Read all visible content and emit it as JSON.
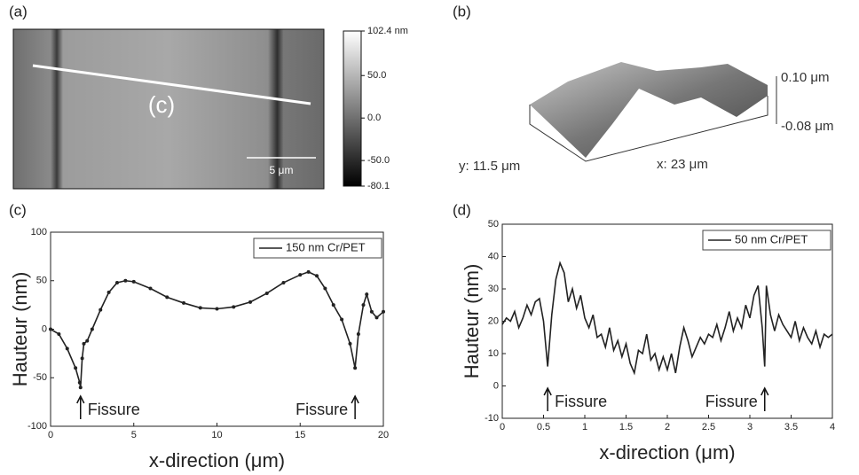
{
  "panel_labels": [
    "(a)",
    "(b)"
  ],
  "afm_image": {
    "line_label": "(c)",
    "scale_bar": "5 μm",
    "colorbar": {
      "lim": [
        -80.1,
        102.4
      ],
      "ticks": [
        {
          "value": 102.4,
          "label": "102.4 nm"
        },
        {
          "value": 50,
          "label": "50.0"
        },
        {
          "value": 0,
          "label": "0.0"
        },
        {
          "value": -50,
          "label": "-50.0"
        },
        -80.1
      ]
    }
  },
  "surface_3d": {
    "z_top": "0.10 μm",
    "z_bottom": "-0.08 μm",
    "y_label": "y: 11.5 μm",
    "x_label": "x: 23 μm"
  },
  "chart_data": [
    {
      "type": "line",
      "panel": "(c)",
      "xlabel": "x-direction (μm)",
      "ylabel": "Hauteur (nm)",
      "xlim": [
        0,
        20
      ],
      "ylim": [
        -100,
        100
      ],
      "xticks": [
        0,
        5,
        10,
        15,
        20
      ],
      "yticks": [
        -100,
        -50,
        0,
        50,
        100
      ],
      "marker": "dot",
      "x": [
        0,
        0.5,
        1,
        1.5,
        1.75,
        1.8,
        1.9,
        2.0,
        2.2,
        2.5,
        3,
        3.5,
        4,
        4.5,
        5,
        6,
        7,
        8,
        9,
        10,
        11,
        12,
        13,
        14,
        15,
        15.5,
        16,
        16.5,
        17,
        17.5,
        18,
        18.3,
        18.5,
        18.8,
        19,
        19.3,
        19.6,
        20
      ],
      "series": [
        {
          "name": "150 nm Cr/PET",
          "color": "#222222",
          "values": [
            0,
            -5,
            -20,
            -40,
            -55,
            -60,
            -30,
            -15,
            -12,
            0,
            20,
            38,
            48,
            50,
            49,
            42,
            33,
            27,
            22,
            21,
            23,
            28,
            37,
            48,
            56,
            59,
            55,
            42,
            25,
            10,
            -15,
            -40,
            -5,
            25,
            36,
            18,
            12,
            18
          ]
        }
      ],
      "annotations": [
        {
          "text": "Fissure",
          "x": 1.8
        },
        {
          "text": "Fissure",
          "x": 18.3
        }
      ]
    },
    {
      "type": "line",
      "panel": "(d)",
      "xlabel": "x-direction (μm)",
      "ylabel": "Hauteur (nm)",
      "xlim": [
        0,
        4
      ],
      "ylim": [
        -10,
        50
      ],
      "xticks": [
        0,
        0.5,
        1,
        1.5,
        2,
        2.5,
        3,
        3.5,
        4
      ],
      "yticks": [
        -10,
        0,
        10,
        20,
        30,
        40,
        50
      ],
      "x": [
        0,
        0.05,
        0.1,
        0.15,
        0.2,
        0.25,
        0.3,
        0.35,
        0.4,
        0.45,
        0.5,
        0.55,
        0.6,
        0.65,
        0.7,
        0.75,
        0.8,
        0.85,
        0.9,
        0.95,
        1.0,
        1.05,
        1.1,
        1.15,
        1.2,
        1.25,
        1.3,
        1.35,
        1.4,
        1.45,
        1.5,
        1.55,
        1.6,
        1.65,
        1.7,
        1.75,
        1.8,
        1.85,
        1.9,
        1.95,
        2.0,
        2.05,
        2.1,
        2.15,
        2.2,
        2.25,
        2.3,
        2.35,
        2.4,
        2.45,
        2.5,
        2.55,
        2.6,
        2.65,
        2.7,
        2.75,
        2.8,
        2.85,
        2.9,
        2.95,
        3.0,
        3.05,
        3.1,
        3.15,
        3.18,
        3.2,
        3.25,
        3.3,
        3.35,
        3.4,
        3.45,
        3.5,
        3.55,
        3.6,
        3.65,
        3.7,
        3.75,
        3.8,
        3.85,
        3.9,
        3.95,
        4.0
      ],
      "series": [
        {
          "name": "50 nm Cr/PET",
          "color": "#222222",
          "values": [
            19,
            21,
            20,
            23,
            18,
            21,
            25,
            22,
            26,
            27,
            20,
            6,
            22,
            33,
            38,
            35,
            26,
            30,
            24,
            28,
            21,
            18,
            22,
            15,
            16,
            12,
            18,
            11,
            14,
            9,
            13,
            7,
            4,
            11,
            10,
            16,
            8,
            10,
            5,
            9,
            5,
            10,
            4,
            12,
            18,
            14,
            9,
            12,
            15,
            13,
            16,
            15,
            19,
            14,
            18,
            23,
            17,
            21,
            18,
            25,
            21,
            28,
            31,
            18,
            6,
            31,
            22,
            17,
            22,
            19,
            17,
            15,
            20,
            14,
            18,
            15,
            13,
            17,
            12,
            16,
            15,
            16
          ]
        }
      ],
      "annotations": [
        {
          "text": "Fissure",
          "x": 0.55
        },
        {
          "text": "Fissure",
          "x": 3.18
        }
      ]
    }
  ]
}
